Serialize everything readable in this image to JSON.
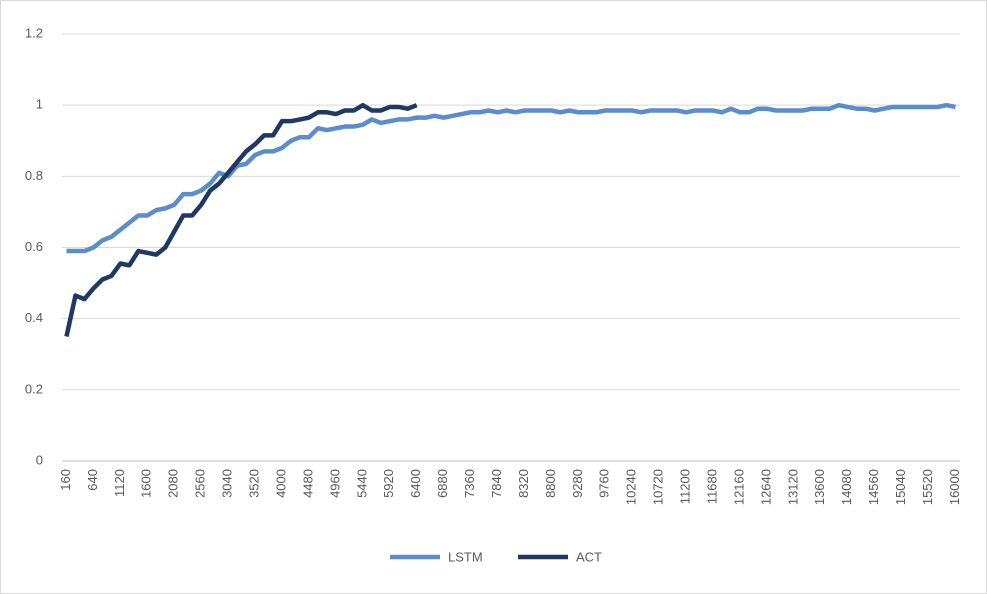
{
  "chart_data": {
    "type": "line",
    "categories": [
      160,
      null,
      null,
      640,
      null,
      null,
      1120,
      null,
      null,
      1600,
      null,
      null,
      2080,
      null,
      null,
      2560,
      null,
      null,
      3040,
      null,
      null,
      3520,
      null,
      null,
      4000,
      null,
      null,
      4480,
      null,
      null,
      4960,
      null,
      null,
      5440,
      null,
      null,
      5920,
      null,
      null,
      6400,
      null,
      null,
      6880,
      null,
      null,
      7360,
      null,
      null,
      7840,
      null,
      null,
      8320,
      null,
      null,
      8800,
      null,
      null,
      9280,
      null,
      null,
      9760,
      null,
      null,
      10240,
      null,
      null,
      10720,
      null,
      null,
      11200,
      null,
      null,
      11680,
      null,
      null,
      12160,
      null,
      null,
      12640,
      null,
      null,
      13120,
      null,
      null,
      13600,
      null,
      null,
      14080,
      null,
      null,
      14560,
      null,
      null,
      15040,
      null,
      null,
      15520,
      null,
      null,
      16000
    ],
    "series": [
      {
        "name": "LSTM",
        "color": "#5b8ccb",
        "values": [
          0.59,
          0.59,
          0.59,
          0.6,
          0.62,
          0.63,
          0.65,
          0.67,
          0.69,
          0.69,
          0.705,
          0.71,
          0.72,
          0.75,
          0.75,
          0.76,
          0.78,
          0.81,
          0.8,
          0.83,
          0.835,
          0.86,
          0.87,
          0.87,
          0.88,
          0.9,
          0.91,
          0.91,
          0.935,
          0.93,
          0.935,
          0.94,
          0.94,
          0.945,
          0.96,
          0.95,
          0.955,
          0.96,
          0.96,
          0.965,
          0.965,
          0.97,
          0.965,
          0.97,
          0.975,
          0.98,
          0.98,
          0.985,
          0.98,
          0.985,
          0.98,
          0.985,
          0.985,
          0.985,
          0.985,
          0.98,
          0.985,
          0.98,
          0.98,
          0.98,
          0.985,
          0.985,
          0.985,
          0.985,
          0.98,
          0.985,
          0.985,
          0.985,
          0.985,
          0.98,
          0.985,
          0.985,
          0.985,
          0.98,
          0.99,
          0.98,
          0.98,
          0.99,
          0.99,
          0.985,
          0.985,
          0.985,
          0.985,
          0.99,
          0.99,
          0.99,
          1,
          0.995,
          0.99,
          0.99,
          0.985,
          0.99,
          0.995,
          0.995,
          0.995,
          0.995,
          0.995,
          0.995,
          1,
          0.995
        ]
      },
      {
        "name": "ACT",
        "color": "#1f3864",
        "values": [
          0.35,
          0.465,
          0.455,
          0.485,
          0.51,
          0.52,
          0.555,
          0.55,
          0.59,
          0.585,
          0.58,
          0.6,
          0.645,
          0.69,
          0.69,
          0.72,
          0.76,
          0.78,
          0.81,
          0.84,
          0.87,
          0.89,
          0.915,
          0.915,
          0.955,
          0.955,
          0.96,
          0.965,
          0.98,
          0.98,
          0.975,
          0.985,
          0.985,
          1,
          0.985,
          0.985,
          0.995,
          0.995,
          0.99,
          1,
          null,
          null,
          null,
          null,
          null,
          null,
          null,
          null,
          null,
          null,
          null,
          null,
          null,
          null,
          null,
          null,
          null,
          null,
          null,
          null,
          null,
          null,
          null,
          null,
          null,
          null,
          null,
          null,
          null,
          null,
          null,
          null,
          null,
          null,
          null,
          null,
          null,
          null,
          null,
          null,
          null,
          null,
          null,
          null,
          null,
          null,
          null,
          null,
          null,
          null,
          null,
          null,
          null,
          null,
          null,
          null,
          null,
          null,
          null,
          null
        ]
      }
    ],
    "ylim": [
      0,
      1.2
    ],
    "yticks": [
      0,
      0.2,
      0.4,
      0.6,
      0.8,
      1,
      1.2
    ],
    "grid": true,
    "legend": "bottom"
  }
}
